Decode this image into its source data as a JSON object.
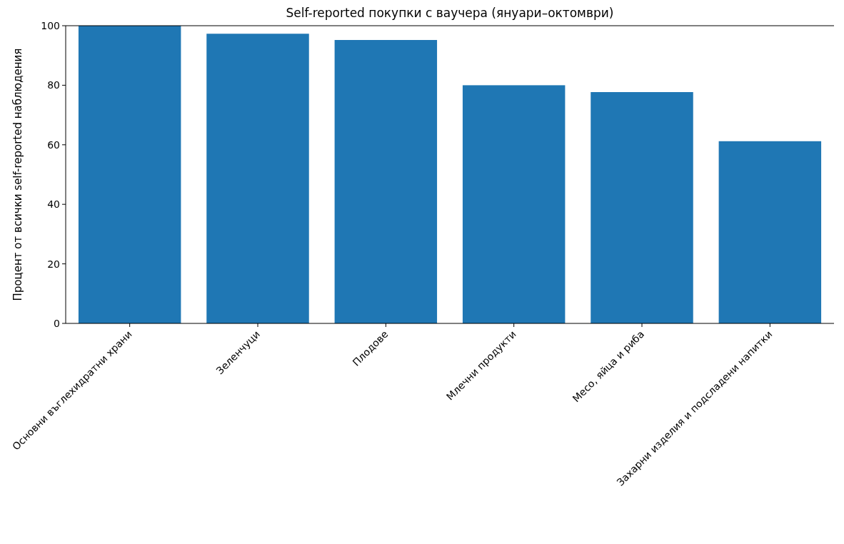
{
  "chart_data": {
    "type": "bar",
    "title": "Self-reported покупки с ваучера (януари–октомври)",
    "ylabel": "Процент от всички self-reported наблюдения",
    "categories": [
      "Основни въглехидратни храни",
      "Зеленчуци",
      "Плодове",
      "Млечни продукти",
      "Месо, яйца и риба",
      "Захарни изделия и подсладени напитки"
    ],
    "values": [
      100,
      97.3,
      95.2,
      80,
      77.7,
      61.2
    ],
    "color": "#1f77b4",
    "ylim": [
      0,
      100
    ],
    "yticks": [
      0,
      20,
      40,
      60,
      80,
      100
    ],
    "grid": false
  }
}
